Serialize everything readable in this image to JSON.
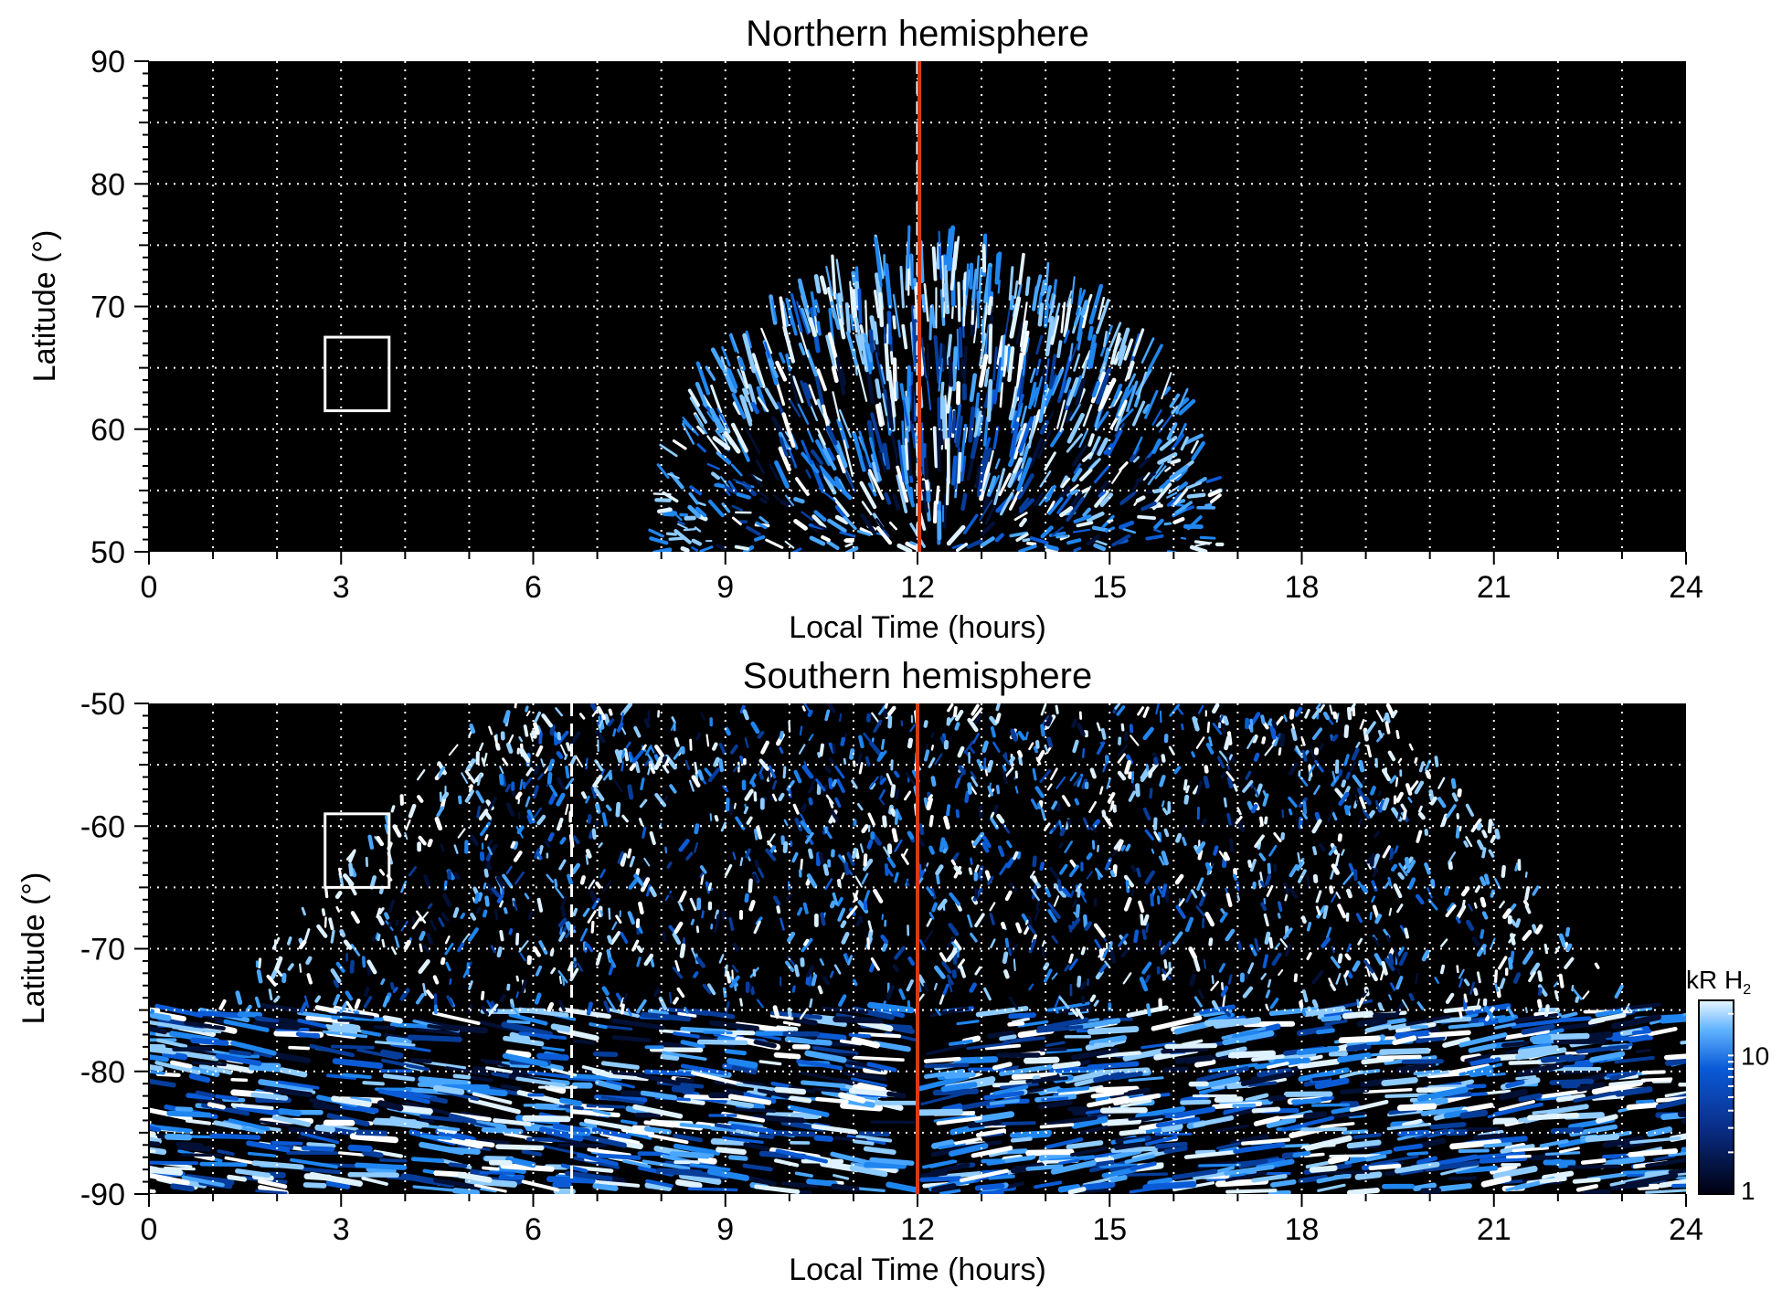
{
  "colors": {
    "background": "#000000",
    "grid": "#ffffff",
    "noon_line": "#d83a16",
    "marker_box": "#ffffff",
    "colormap_dark": "#000010",
    "colormap_mid": "#0a5ad8",
    "colormap_light": "#e8f6ff"
  },
  "chart_data": [
    {
      "type": "heatmap",
      "title": "Northern hemisphere",
      "xlabel": "Local Time (hours)",
      "ylabel": "Latitude (°)",
      "xlim": [
        0,
        24
      ],
      "ylim": [
        50,
        90
      ],
      "xticks": [
        "0",
        "3",
        "6",
        "9",
        "12",
        "15",
        "18",
        "21",
        "24"
      ],
      "yticks": [
        "50",
        "60",
        "70",
        "80",
        "90"
      ],
      "grid": true,
      "emission_region": {
        "center_lt": 12.3,
        "lt_half_width": 4.4,
        "max_lat": 73.5
      },
      "noon_line_lt": 12,
      "dashed_line_lt": 12,
      "marker_box": {
        "lt": [
          2.75,
          3.75
        ],
        "lat": [
          61.5,
          67.5
        ]
      }
    },
    {
      "type": "heatmap",
      "title": "Southern hemisphere",
      "xlabel": "Local Time (hours)",
      "ylabel": "Latitude (°)",
      "xlim": [
        0,
        24
      ],
      "ylim": [
        -90,
        -50
      ],
      "xticks": [
        "0",
        "3",
        "6",
        "9",
        "12",
        "15",
        "18",
        "21",
        "24"
      ],
      "yticks": [
        "-50",
        "-60",
        "-70",
        "-80",
        "-90"
      ],
      "grid": true,
      "emission_region": {
        "lt_range": [
          5.2,
          19.5
        ],
        "edge_lat": -75
      },
      "noon_line_lt": 12,
      "dashed_line_lt": 6.6,
      "marker_box": {
        "lt": [
          2.75,
          3.75
        ],
        "lat": [
          -65,
          -59
        ]
      }
    }
  ],
  "colorbar": {
    "label": "kR H",
    "label_subscript": "2",
    "ticks": [
      "1",
      "10"
    ],
    "scale": "log",
    "range": [
      1,
      25
    ]
  }
}
